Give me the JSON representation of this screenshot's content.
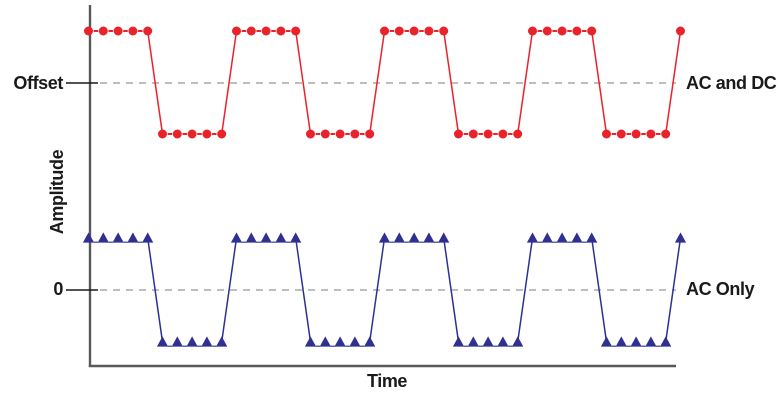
{
  "chart_data": {
    "type": "line",
    "title": "",
    "xlabel": "Time",
    "ylabel": "Amplitude",
    "x_axis": {
      "label": "Time",
      "tick_labels": []
    },
    "y_axis": {
      "label": "Amplitude",
      "tick_labels": [
        "Offset",
        "0"
      ]
    },
    "grid": "off",
    "legend_position": "labels at right end of each reference line",
    "reference_lines": [
      {
        "label": "Offset",
        "style": "dashed",
        "applies_to": "AC and DC"
      },
      {
        "label": "0",
        "style": "dashed",
        "applies_to": "AC Only"
      }
    ],
    "waveform_shape": "square wave, 5 samples per half-cycle, 4 full cycles plus one final high sample",
    "num_points": 41,
    "series": [
      {
        "name": "AC and DC",
        "marker": "circle",
        "color": "#e8232b",
        "center_reference": "Offset",
        "amplitude_units": "relative (+1 = high level, -1 = low level about the Offset line)",
        "values": [
          1,
          1,
          1,
          1,
          1,
          -1,
          -1,
          -1,
          -1,
          -1,
          1,
          1,
          1,
          1,
          1,
          -1,
          -1,
          -1,
          -1,
          -1,
          1,
          1,
          1,
          1,
          1,
          -1,
          -1,
          -1,
          -1,
          -1,
          1,
          1,
          1,
          1,
          1,
          -1,
          -1,
          -1,
          -1,
          -1,
          1
        ]
      },
      {
        "name": "AC Only",
        "marker": "triangle-up",
        "color": "#2e3192",
        "center_reference": "0",
        "amplitude_units": "relative (+1 = high level, -1 = low level about the 0 line)",
        "values": [
          1,
          1,
          1,
          1,
          1,
          -1,
          -1,
          -1,
          -1,
          -1,
          1,
          1,
          1,
          1,
          1,
          -1,
          -1,
          -1,
          -1,
          -1,
          1,
          1,
          1,
          1,
          1,
          -1,
          -1,
          -1,
          -1,
          -1,
          1,
          1,
          1,
          1,
          1,
          -1,
          -1,
          -1,
          -1,
          -1,
          1
        ]
      }
    ],
    "style": {
      "axis_color": "#58595b",
      "reference_line_color": "#a7a9ac",
      "text_color": "#1a1a1a"
    }
  }
}
